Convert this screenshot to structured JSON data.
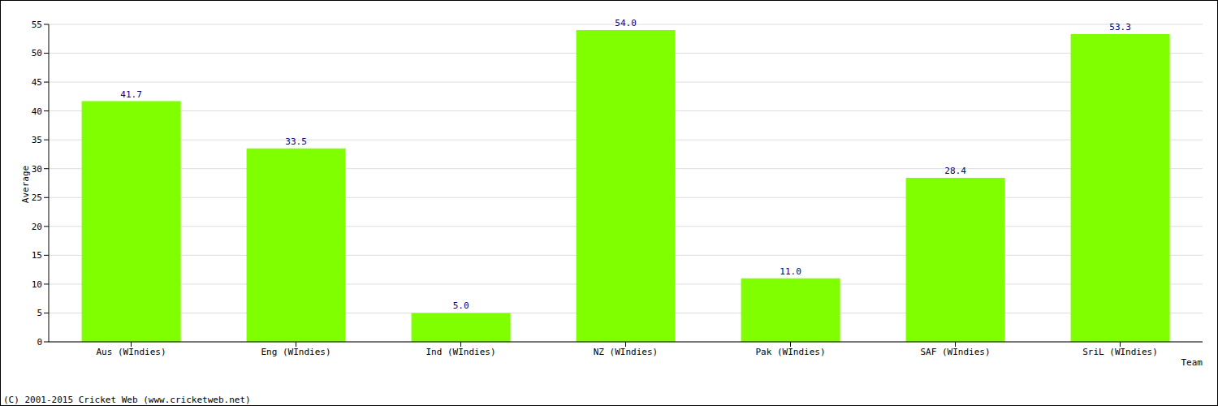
{
  "chart_data": {
    "type": "bar",
    "x_label": "Team",
    "y_label": "Average",
    "annotations": [
      "(C) 2001-2015 Cricket Web (www.cricketweb.net)"
    ],
    "categories": [
      "Aus (WIndies)",
      "Eng (WIndies)",
      "Ind (WIndies)",
      "NZ (WIndies)",
      "Pak (WIndies)",
      "SAF (WIndies)",
      "SriL (WIndies)"
    ],
    "values": [
      41.7,
      33.5,
      5.0,
      54.0,
      11.0,
      28.4,
      53.3
    ],
    "value_labels": [
      "41.7",
      "33.5",
      "5.0",
      "54.0",
      "11.0",
      "28.4",
      "53.3"
    ],
    "color": "#80ff00",
    "ylim": [
      0,
      55
    ],
    "yticks": [
      0,
      5,
      10,
      15,
      20,
      25,
      30,
      35,
      40,
      45,
      50,
      55
    ],
    "grid": true,
    "data_labels": true
  }
}
